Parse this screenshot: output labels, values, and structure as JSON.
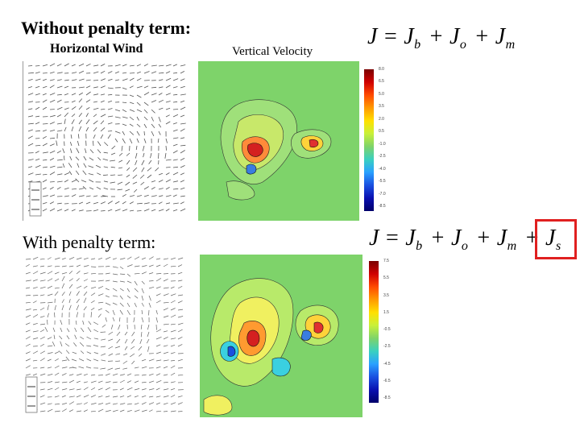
{
  "top": {
    "heading": "Without penalty term:",
    "wind_label": "Horizontal Wind",
    "vel_label": "Vertical Velocity",
    "equation": {
      "J": "J",
      "eq": "=",
      "terms": [
        {
          "base": "J",
          "sub": "b"
        },
        {
          "base": "J",
          "sub": "o"
        },
        {
          "base": "J",
          "sub": "m"
        }
      ]
    },
    "colorbar_ticks": [
      "8.0",
      "6.5",
      "5.0",
      "3.5",
      "2.0",
      "0.5",
      "-1.0",
      "-2.5",
      "-4.0",
      "-5.5",
      "-7.0",
      "-8.5"
    ]
  },
  "bottom": {
    "heading": "With penalty term:",
    "equation": {
      "J": "J",
      "eq": "=",
      "terms": [
        {
          "base": "J",
          "sub": "b"
        },
        {
          "base": "J",
          "sub": "o"
        },
        {
          "base": "J",
          "sub": "m"
        },
        {
          "base": "J",
          "sub": "s"
        }
      ]
    },
    "highlighted_term": "J_s",
    "colorbar_ticks": [
      "7.5",
      "5.5",
      "3.5",
      "1.5",
      "-0.5",
      "-2.5",
      "-4.5",
      "-6.5",
      "-8.5"
    ]
  },
  "colors": {
    "highlight": "#e02020",
    "field_bg": "#7ed36a"
  }
}
